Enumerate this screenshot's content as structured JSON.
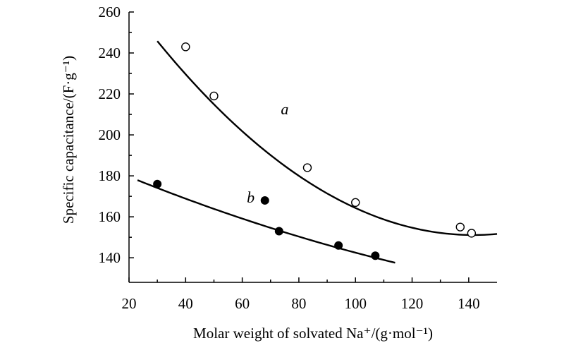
{
  "chart_data": {
    "type": "scatter",
    "xlabel": "Molar weight of solvated Na⁺/(g·mol⁻¹)",
    "ylabel": "Specific capacitance/(F·g⁻¹)",
    "xlim": [
      20,
      150
    ],
    "ylim": [
      128,
      260
    ],
    "xticks": [
      20,
      40,
      60,
      80,
      100,
      120,
      140
    ],
    "yticks": [
      140,
      160,
      180,
      200,
      220,
      240,
      260
    ],
    "series": [
      {
        "name": "a",
        "marker": "open-circle",
        "points": [
          {
            "x": 40,
            "y": 243
          },
          {
            "x": 50,
            "y": 219
          },
          {
            "x": 83,
            "y": 184
          },
          {
            "x": 100,
            "y": 167
          },
          {
            "x": 137,
            "y": 155
          },
          {
            "x": 141,
            "y": 152
          }
        ],
        "fit": {
          "x_range": [
            30,
            150
          ],
          "coeffs": [
            303.5,
            -2.151,
            0.00759
          ]
        }
      },
      {
        "name": "b",
        "marker": "filled-circle",
        "points": [
          {
            "x": 30,
            "y": 176
          },
          {
            "x": 68,
            "y": 168
          },
          {
            "x": 73,
            "y": 153
          },
          {
            "x": 94,
            "y": 146
          },
          {
            "x": 107,
            "y": 141
          }
        ],
        "fit": {
          "x_range": [
            23,
            114
          ],
          "coeffs": [
            191.2,
            -0.6058,
            0.001188
          ]
        }
      }
    ],
    "annotations": [
      {
        "text": "a",
        "x": 75,
        "y": 210
      },
      {
        "text": "b",
        "x": 63,
        "y": 167
      }
    ]
  }
}
